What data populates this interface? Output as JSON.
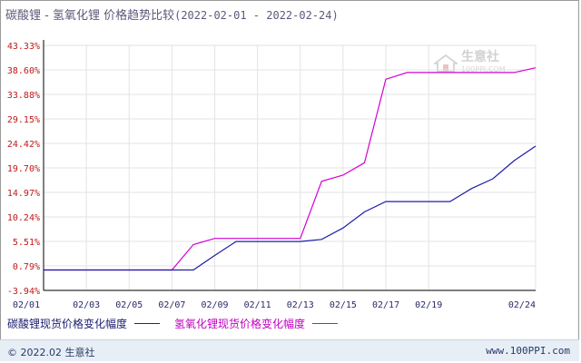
{
  "header": {
    "title": "碳酸锂 - 氢氧化锂 价格趋势比较",
    "date_range": "(2022-02-01 - 2022-02-24)"
  },
  "watermark": {
    "text": "生意社",
    "url": "100PPI.COM"
  },
  "footer": {
    "left": "© 2022.02 生意社",
    "right": "www.100PPI.com"
  },
  "colors": {
    "series1": "#1c1ca8",
    "series2": "#d400d4",
    "grid": "#e3e3e3",
    "axis": "#000000"
  },
  "chart_data": {
    "type": "line",
    "title": "碳酸锂 - 氢氧化锂 价格趋势比较",
    "xlabel": "",
    "ylabel": "",
    "ylim": [
      -3.94,
      43.33
    ],
    "y_ticks": [
      "43.33%",
      "38.60%",
      "33.88%",
      "29.15%",
      "24.42%",
      "19.70%",
      "14.97%",
      "10.24%",
      "5.51%",
      "0.79%",
      "-3.94%"
    ],
    "y_tick_values": [
      43.33,
      38.6,
      33.88,
      29.15,
      24.42,
      19.7,
      14.97,
      10.24,
      5.51,
      0.79,
      -3.94
    ],
    "x_ticks": [
      "02/01",
      "02/03",
      "02/05",
      "02/07",
      "02/09",
      "02/11",
      "02/13",
      "02/15",
      "02/17",
      "02/19",
      "02/24"
    ],
    "x_tick_days": [
      1,
      3,
      5,
      7,
      9,
      11,
      13,
      15,
      17,
      19,
      24
    ],
    "x_range_days": [
      1,
      24
    ],
    "grid": true,
    "legend_position": "bottom",
    "series": [
      {
        "name": "碳酸锂现货价格变化幅度",
        "x": [
          1,
          7,
          8,
          9,
          10,
          13,
          14,
          15,
          16,
          17,
          18,
          20,
          21,
          22,
          23,
          24
        ],
        "y": [
          0.0,
          0.0,
          0.0,
          2.8,
          5.5,
          5.5,
          5.9,
          8.1,
          11.2,
          13.2,
          13.2,
          13.2,
          15.7,
          17.6,
          21.1,
          23.9
        ]
      },
      {
        "name": "氢氧化锂现货价格变化幅度",
        "x": [
          1,
          7,
          8,
          9,
          13,
          14,
          15,
          16,
          17,
          18,
          20,
          21,
          23,
          24
        ],
        "y": [
          0.0,
          0.0,
          4.9,
          6.1,
          6.1,
          17.1,
          18.3,
          20.7,
          36.8,
          38.1,
          38.1,
          38.1,
          38.1,
          39.0
        ]
      }
    ]
  }
}
